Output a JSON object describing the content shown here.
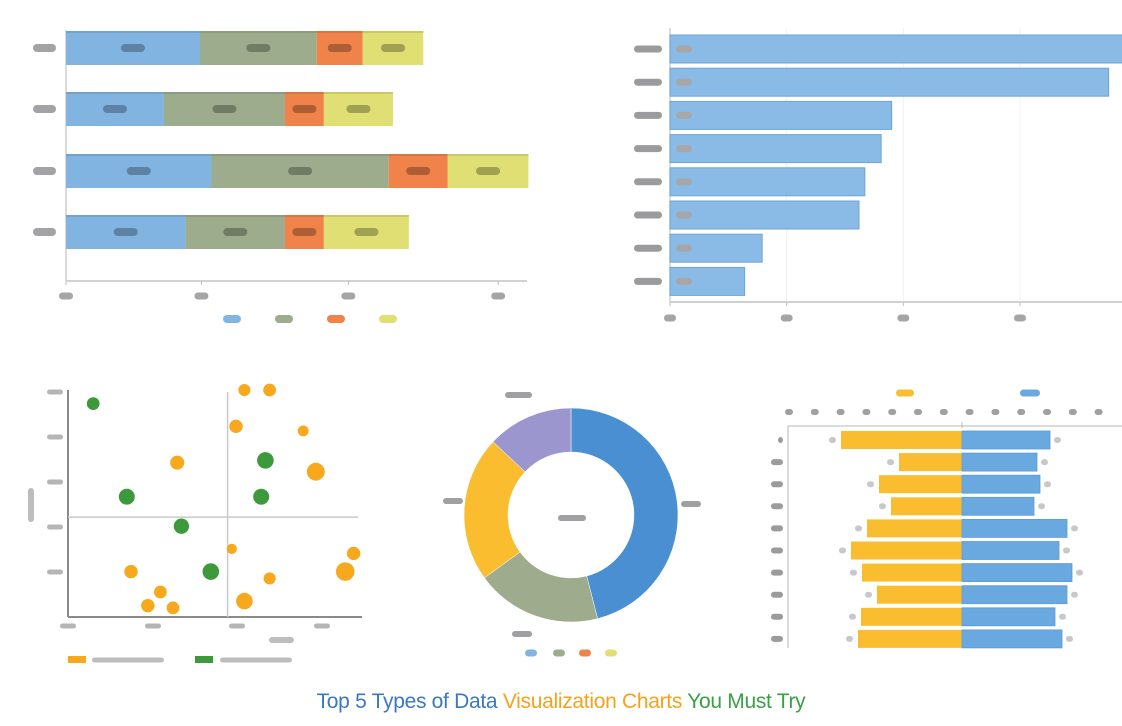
{
  "title": {
    "part1": "Top 5 Types of Data ",
    "part2": "Visualization Charts ",
    "part3": "You Must Try",
    "colors": [
      "#3a78c4",
      "#f4a21c",
      "#3aa044"
    ]
  },
  "chart_data": [
    {
      "id": "stacked-bar",
      "type": "bar",
      "orientation": "horizontal",
      "stacked": true,
      "title": "",
      "xlabel": "",
      "ylabel": "",
      "categories": [
        "",
        "",
        "",
        ""
      ],
      "series": [
        {
          "name": "",
          "color": "#82b4e2",
          "values": [
            9.3,
            6.8,
            10.1,
            8.3
          ]
        },
        {
          "name": "",
          "color": "#9dac8c",
          "values": [
            8.1,
            8.4,
            12.3,
            6.9
          ]
        },
        {
          "name": "",
          "color": "#f0834a",
          "values": [
            3.2,
            2.7,
            4.1,
            2.7
          ]
        },
        {
          "name": "",
          "color": "#e0df74",
          "values": [
            4.2,
            4.8,
            5.6,
            5.9
          ]
        }
      ],
      "xlim": [
        0,
        32
      ],
      "xticks": [
        0,
        9.4,
        19.6,
        30
      ],
      "tick_labels_visible": false,
      "grid": false,
      "legend": "bottom",
      "data_labels": "inside"
    },
    {
      "id": "horizontal-bar",
      "type": "bar",
      "orientation": "horizontal",
      "title": "",
      "categories": [
        "",
        "",
        "",
        "",
        "",
        "",
        "",
        ""
      ],
      "series": [
        {
          "name": "",
          "color": "#89bbe6",
          "values": [
            3.9,
            3.76,
            1.9,
            1.81,
            1.67,
            1.62,
            0.79,
            0.64
          ]
        }
      ],
      "xlim": [
        0,
        3.9
      ],
      "xticks": [
        0,
        1,
        2,
        3
      ],
      "grid": true,
      "legend": "none",
      "data_labels": "inside-left"
    },
    {
      "id": "bubble-quadrant",
      "type": "scatter",
      "title": "",
      "xlabel": "",
      "ylabel": "",
      "xlim": [
        0,
        3.5
      ],
      "ylim": [
        0,
        5
      ],
      "quadrant_lines": {
        "x": 1.9,
        "y": 2.2
      },
      "series": [
        {
          "name": "",
          "color": "#f7a81d",
          "points": [
            [
              2.1,
              5.0,
              0.8
            ],
            [
              2.4,
              5.0,
              0.9
            ],
            [
              2.0,
              4.2,
              1.0
            ],
            [
              2.8,
              4.1,
              0.6
            ],
            [
              1.3,
              3.4,
              1.1
            ],
            [
              2.95,
              3.2,
              1.7
            ],
            [
              1.95,
              1.5,
              0.5
            ],
            [
              3.4,
              1.4,
              1.0
            ],
            [
              0.75,
              1.0,
              1.0
            ],
            [
              3.3,
              1.0,
              1.8
            ],
            [
              2.4,
              0.85,
              0.8
            ],
            [
              1.1,
              0.55,
              0.9
            ],
            [
              2.1,
              0.35,
              1.5
            ],
            [
              0.95,
              0.25,
              1.0
            ],
            [
              1.25,
              0.2,
              0.9
            ]
          ]
        },
        {
          "name": "",
          "color": "#3c9a3c",
          "points": [
            [
              0.3,
              4.7,
              0.9
            ],
            [
              2.35,
              3.45,
              1.5
            ],
            [
              0.7,
              2.65,
              1.4
            ],
            [
              2.3,
              2.65,
              1.4
            ],
            [
              1.35,
              2.0,
              1.3
            ],
            [
              1.7,
              1.0,
              1.5
            ]
          ]
        }
      ],
      "legend": "bottom-left"
    },
    {
      "id": "donut",
      "type": "pie",
      "donut": true,
      "title": "",
      "slices": [
        {
          "label": "",
          "value": 46,
          "color": "#4a8fd2"
        },
        {
          "label": "",
          "value": 19,
          "color": "#9eab8c"
        },
        {
          "label": "",
          "value": 22,
          "color": "#fbbd30"
        },
        {
          "label": "",
          "value": 13,
          "color": "#9b97ce"
        }
      ],
      "legend_colors": [
        "#82b4e2",
        "#9dac8c",
        "#f0834a",
        "#e0df74"
      ],
      "legend": "bottom"
    },
    {
      "id": "butterfly",
      "type": "bar",
      "orientation": "horizontal",
      "diverging": true,
      "title": "",
      "categories": [
        "",
        "",
        "",
        "",
        "",
        "",
        "",
        "",
        "",
        ""
      ],
      "series": [
        {
          "name": "",
          "color": "#fbbd30",
          "values": [
            121,
            63,
            83,
            71,
            95,
            111,
            100,
            85,
            101,
            104
          ]
        },
        {
          "name": "",
          "color": "#6aa8e0",
          "values": [
            88,
            75,
            78,
            72,
            105,
            97,
            110,
            105,
            93,
            100
          ]
        }
      ],
      "xlim": [
        -160,
        160
      ],
      "tick_count": 13,
      "grid": false,
      "legend": "top",
      "data_labels": "outside"
    }
  ]
}
